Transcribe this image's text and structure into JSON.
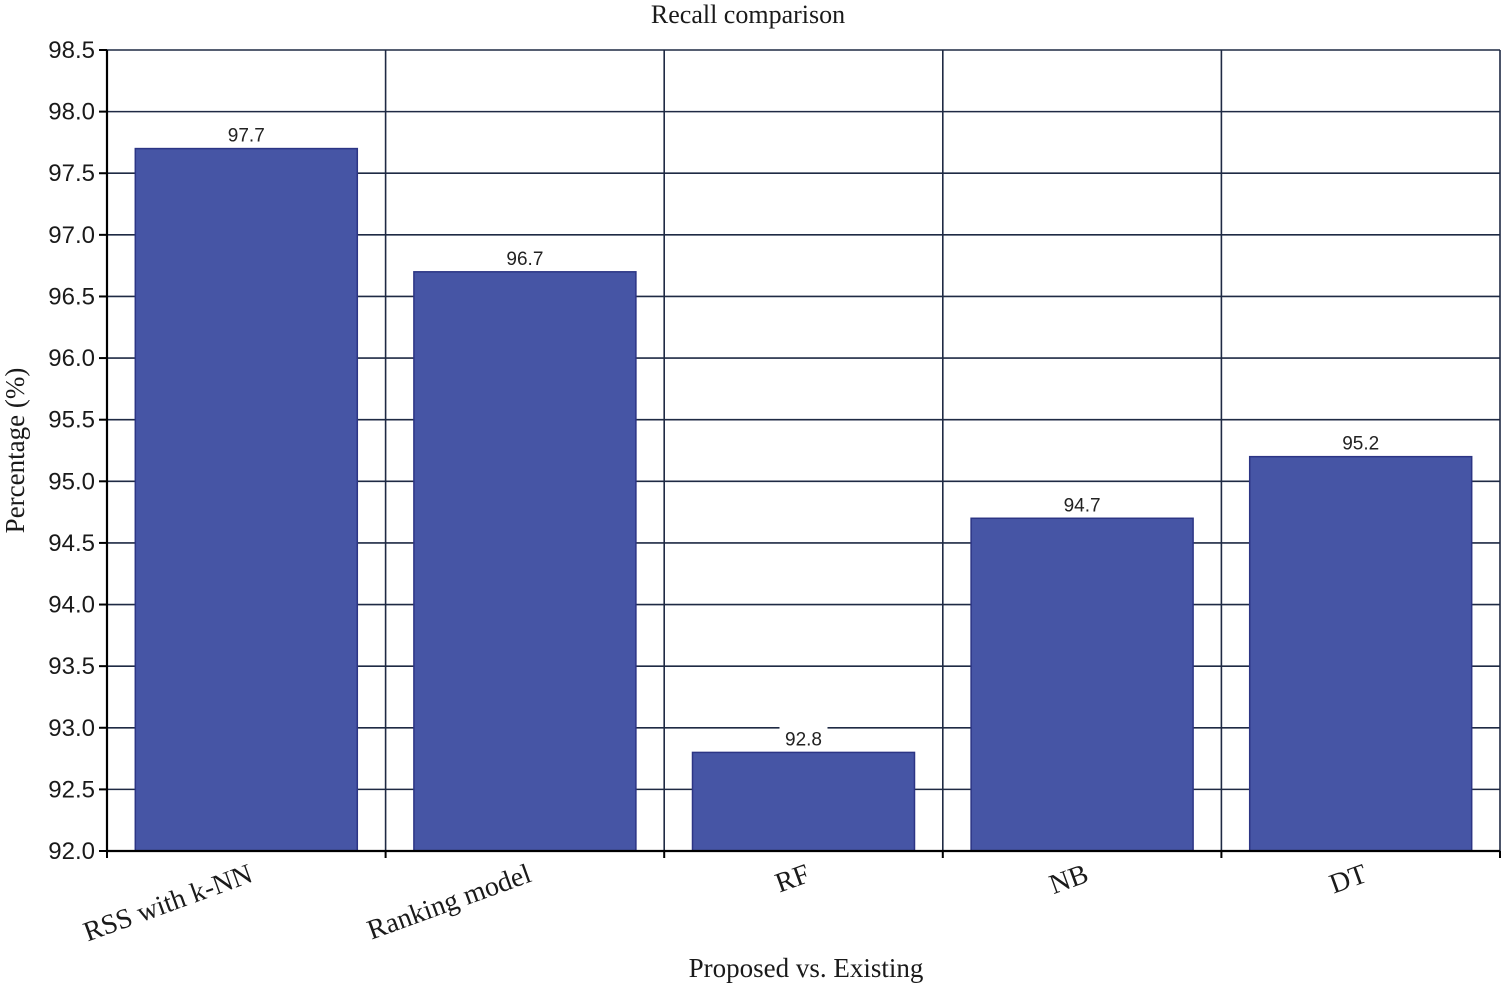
{
  "chart_data": {
    "type": "bar",
    "title": "Recall comparison",
    "xlabel": "Proposed vs. Existing",
    "ylabel": "Percentage (%)",
    "categories": [
      "RSS with k-NN",
      "Ranking model",
      "RF",
      "NB",
      "DT"
    ],
    "values": [
      97.7,
      96.7,
      92.8,
      94.7,
      95.2
    ],
    "value_labels": [
      "97.7",
      "96.7",
      "92.8",
      "94.7",
      "95.2"
    ],
    "ylim": [
      92.0,
      98.5
    ],
    "yticks": [
      "92.0",
      "92.5",
      "93.0",
      "93.5",
      "94.0",
      "94.5",
      "95.0",
      "95.5",
      "96.0",
      "96.5",
      "97.0",
      "97.5",
      "98.0",
      "98.5"
    ],
    "grid": true,
    "legend": "none",
    "bar_color": "#4655a5",
    "bar_edge_color": "#2c3585"
  }
}
